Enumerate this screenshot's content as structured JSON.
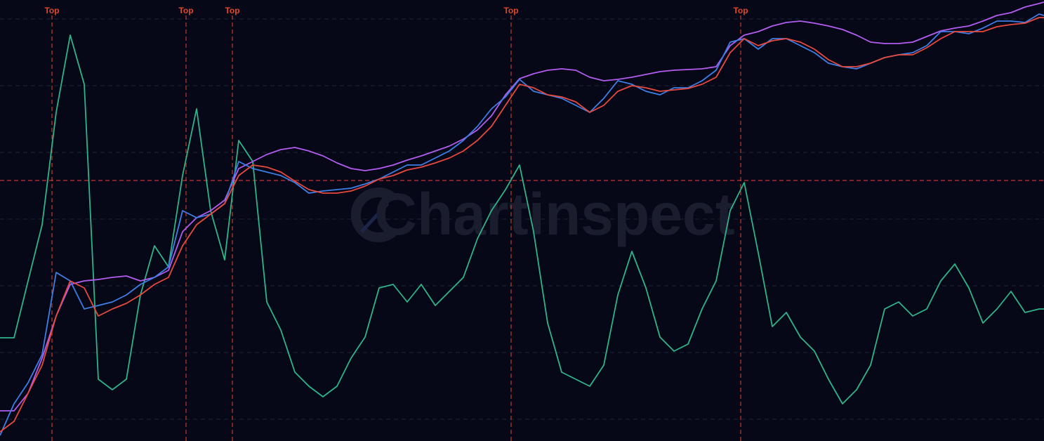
{
  "chart_data": {
    "type": "line",
    "watermark": "Chartinspect",
    "xlim": [
      0,
      1487
    ],
    "ylim": [
      0,
      628
    ],
    "yticks": [
      31,
      126,
      221,
      316,
      411,
      506,
      601
    ],
    "grid": true,
    "hline": {
      "value": 371,
      "color": "#c8323a"
    },
    "tops": [
      {
        "label": "Top",
        "x": 74
      },
      {
        "label": "Top",
        "x": 265
      },
      {
        "label": "Top",
        "x": 331
      },
      {
        "label": "Top",
        "x": 728
      },
      {
        "label": "Top",
        "x": 1055
      }
    ],
    "top_color": "#e0482a",
    "x": [
      0,
      20,
      40,
      60,
      80,
      100,
      120,
      140,
      160,
      180,
      200,
      220,
      240,
      260,
      280,
      300,
      320,
      340,
      360,
      380,
      400,
      420,
      440,
      460,
      480,
      500,
      520,
      540,
      560,
      580,
      600,
      620,
      640,
      660,
      680,
      700,
      720,
      740,
      760,
      780,
      800,
      820,
      840,
      860,
      880,
      900,
      920,
      940,
      960,
      980,
      1000,
      1020,
      1040,
      1060,
      1080,
      1100,
      1120,
      1140,
      1160,
      1180,
      1200,
      1220,
      1240,
      1260,
      1280,
      1300,
      1320,
      1340,
      1360,
      1380,
      1400,
      1420,
      1440,
      1460,
      1480,
      1487
    ],
    "series": [
      {
        "color": "#2fb48a",
        "values": [
          147,
          147,
          228,
          308,
          468,
          578,
          508,
          88,
          73,
          88,
          208,
          278,
          248,
          378,
          473,
          328,
          258,
          428,
          398,
          198,
          158,
          98,
          78,
          63,
          78,
          118,
          148,
          218,
          223,
          198,
          223,
          193,
          213,
          233,
          288,
          328,
          358,
          393,
          298,
          168,
          98,
          88,
          78,
          108,
          208,
          270,
          218,
          148,
          128,
          138,
          188,
          228,
          328,
          368,
          268,
          163,
          183,
          148,
          128,
          88,
          53,
          73,
          108,
          188,
          198,
          178,
          188,
          228,
          252,
          218,
          168,
          188,
          213,
          183,
          188,
          188
        ]
      },
      {
        "color": "#b25cf0",
        "values": [
          43,
          43,
          68,
          118,
          178,
          223,
          228,
          230,
          233,
          235,
          228,
          233,
          243,
          298,
          318,
          328,
          343,
          388,
          398,
          408,
          415,
          418,
          413,
          406,
          396,
          388,
          385,
          388,
          393,
          400,
          406,
          413,
          420,
          430,
          443,
          463,
          493,
          516,
          523,
          528,
          530,
          528,
          518,
          513,
          515,
          518,
          522,
          526,
          528,
          529,
          530,
          533,
          563,
          578,
          583,
          591,
          596,
          598,
          595,
          591,
          586,
          578,
          568,
          566,
          566,
          568,
          576,
          584,
          588,
          591,
          598,
          606,
          610,
          618,
          623,
          625
        ]
      },
      {
        "color": "#3d7fe6",
        "values": [
          8,
          53,
          83,
          123,
          240,
          228,
          188,
          193,
          198,
          208,
          223,
          233,
          248,
          328,
          318,
          323,
          338,
          398,
          388,
          383,
          378,
          368,
          353,
          356,
          358,
          360,
          366,
          373,
          383,
          393,
          393,
          403,
          413,
          428,
          448,
          473,
          490,
          515,
          498,
          493,
          488,
          478,
          468,
          488,
          513,
          508,
          498,
          493,
          503,
          503,
          513,
          528,
          568,
          573,
          558,
          573,
          573,
          563,
          553,
          538,
          533,
          530,
          538,
          546,
          550,
          553,
          563,
          583,
          583,
          580,
          588,
          598,
          598,
          596,
          608,
          606
        ]
      },
      {
        "color": "#e8493e",
        "values": [
          13,
          28,
          68,
          108,
          178,
          228,
          218,
          178,
          188,
          196,
          208,
          223,
          233,
          278,
          308,
          323,
          338,
          378,
          393,
          390,
          383,
          370,
          358,
          353,
          353,
          356,
          363,
          373,
          378,
          386,
          390,
          396,
          403,
          413,
          428,
          448,
          478,
          508,
          503,
          493,
          490,
          483,
          468,
          478,
          498,
          506,
          503,
          498,
          500,
          502,
          508,
          518,
          553,
          573,
          563,
          570,
          573,
          568,
          558,
          543,
          533,
          533,
          538,
          546,
          550,
          550,
          560,
          573,
          583,
          583,
          583,
          590,
          593,
          595,
          603,
          603
        ]
      }
    ]
  }
}
